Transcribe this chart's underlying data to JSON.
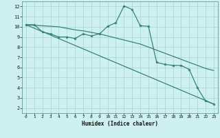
{
  "xlabel": "Humidex (Indice chaleur)",
  "background_color": "#cff0f0",
  "grid_color": "#aad8d8",
  "line_color": "#2d7d70",
  "x_ticks": [
    0,
    1,
    2,
    3,
    4,
    5,
    6,
    7,
    8,
    9,
    10,
    11,
    12,
    13,
    14,
    15,
    16,
    17,
    18,
    19,
    20,
    21,
    22,
    23
  ],
  "y_ticks": [
    2,
    3,
    4,
    5,
    6,
    7,
    8,
    9,
    10,
    11,
    12
  ],
  "xlim": [
    -0.5,
    23.5
  ],
  "ylim": [
    1.5,
    12.5
  ],
  "series1_x": [
    0,
    1,
    2,
    3,
    4,
    5,
    6,
    7,
    8,
    9,
    10,
    11,
    12,
    13,
    14,
    15,
    16,
    17,
    18,
    19,
    20,
    21,
    22,
    23
  ],
  "series1_y": [
    10.2,
    10.2,
    9.5,
    9.3,
    9.0,
    9.0,
    8.85,
    9.3,
    9.1,
    9.3,
    10.05,
    10.4,
    12.05,
    11.7,
    10.1,
    10.05,
    6.5,
    6.3,
    6.2,
    6.2,
    5.8,
    4.0,
    2.7,
    2.4
  ],
  "series2_x": [
    0,
    1,
    2,
    3,
    4,
    5,
    6,
    7,
    8,
    9,
    10,
    11,
    12,
    13,
    14,
    15,
    16,
    17,
    18,
    19,
    20,
    21,
    22,
    23
  ],
  "series2_y": [
    10.2,
    10.15,
    10.1,
    10.05,
    10.0,
    9.85,
    9.7,
    9.6,
    9.45,
    9.3,
    9.1,
    8.9,
    8.7,
    8.5,
    8.3,
    8.0,
    7.7,
    7.4,
    7.1,
    6.8,
    6.5,
    6.2,
    5.9,
    5.7
  ],
  "series3_x": [
    0,
    23
  ],
  "series3_y": [
    10.2,
    2.4
  ]
}
